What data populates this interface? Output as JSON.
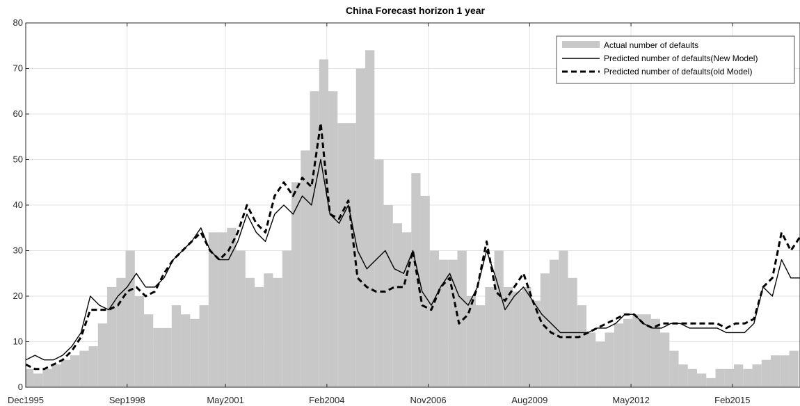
{
  "chart_data": {
    "type": "bar",
    "title": "China Forecast horizon 1 year",
    "xlabel": "",
    "ylabel": "",
    "x_range": [
      "1995-12",
      "2016-12"
    ],
    "ylim": [
      0,
      80
    ],
    "yticks": [
      0,
      10,
      20,
      30,
      40,
      50,
      60,
      70,
      80
    ],
    "xticks": [
      "Dec1995",
      "Sep1998",
      "May2001",
      "Feb2004",
      "Nov2006",
      "Aug2009",
      "May2012",
      "Feb2015"
    ],
    "grid": true,
    "legend_position": "top-right",
    "legend": [
      "Actual number of defaults",
      "Predicted number of defaults(New Model)",
      "Predicted number of defaults(old Model)"
    ],
    "colors": {
      "bars": "#c8c8c8",
      "new_model": "#000000",
      "old_model": "#000000",
      "grid": "#e3e3e3"
    },
    "series": [
      {
        "name": "Actual number of defaults",
        "type": "bar",
        "x": [
          "1996-01",
          "1996-04",
          "1996-07",
          "1996-10",
          "1997-01",
          "1997-04",
          "1997-07",
          "1997-10",
          "1998-01",
          "1998-04",
          "1998-07",
          "1998-10",
          "1999-01",
          "1999-04",
          "1999-07",
          "1999-10",
          "2000-01",
          "2000-04",
          "2000-07",
          "2000-10",
          "2001-01",
          "2001-04",
          "2001-07",
          "2001-10",
          "2002-01",
          "2002-04",
          "2002-07",
          "2002-10",
          "2003-01",
          "2003-04",
          "2003-07",
          "2003-10",
          "2004-01",
          "2004-04",
          "2004-07",
          "2004-10",
          "2005-01",
          "2005-04",
          "2005-07",
          "2005-10",
          "2006-01",
          "2006-04",
          "2006-07",
          "2006-10",
          "2007-01",
          "2007-04",
          "2007-07",
          "2007-10",
          "2008-01",
          "2008-04",
          "2008-07",
          "2008-10",
          "2009-01",
          "2009-04",
          "2009-07",
          "2009-10",
          "2010-01",
          "2010-04",
          "2010-07",
          "2010-10",
          "2011-01",
          "2011-04",
          "2011-07",
          "2011-10",
          "2012-01",
          "2012-04",
          "2012-07",
          "2012-10",
          "2013-01",
          "2013-04",
          "2013-07",
          "2013-10",
          "2014-01",
          "2014-04",
          "2014-07",
          "2014-10",
          "2015-01",
          "2015-04",
          "2015-07",
          "2015-10",
          "2016-01",
          "2016-04",
          "2016-07",
          "2016-10"
        ],
        "values": [
          4,
          3,
          4,
          5,
          6,
          7,
          8,
          9,
          14,
          22,
          24,
          30,
          20,
          16,
          13,
          13,
          18,
          16,
          15,
          18,
          34,
          34,
          35,
          30,
          24,
          22,
          25,
          24,
          30,
          45,
          52,
          65,
          72,
          65,
          58,
          58,
          70,
          74,
          50,
          40,
          36,
          34,
          47,
          42,
          30,
          28,
          28,
          30,
          20,
          18,
          22,
          30,
          22,
          21,
          22,
          19,
          25,
          28,
          30,
          24,
          18,
          12,
          10,
          12,
          14,
          15,
          16,
          16,
          15,
          12,
          8,
          5,
          4,
          3,
          2,
          4,
          4,
          5,
          4,
          5,
          6,
          7,
          7,
          8
        ]
      },
      {
        "name": "Predicted number of defaults(New Model)",
        "type": "line",
        "x": [
          "1995-12",
          "1996-03",
          "1996-06",
          "1996-09",
          "1996-12",
          "1997-03",
          "1997-06",
          "1997-09",
          "1997-12",
          "1998-03",
          "1998-06",
          "1998-09",
          "1998-12",
          "1999-03",
          "1999-06",
          "1999-09",
          "1999-12",
          "2000-03",
          "2000-06",
          "2000-09",
          "2000-12",
          "2001-03",
          "2001-06",
          "2001-09",
          "2001-12",
          "2002-03",
          "2002-06",
          "2002-09",
          "2002-12",
          "2003-03",
          "2003-06",
          "2003-09",
          "2003-12",
          "2004-03",
          "2004-06",
          "2004-09",
          "2004-12",
          "2005-03",
          "2005-06",
          "2005-09",
          "2005-12",
          "2006-03",
          "2006-06",
          "2006-09",
          "2006-12",
          "2007-03",
          "2007-06",
          "2007-09",
          "2007-12",
          "2008-03",
          "2008-06",
          "2008-09",
          "2008-12",
          "2009-03",
          "2009-06",
          "2009-09",
          "2009-12",
          "2010-03",
          "2010-06",
          "2010-09",
          "2010-12",
          "2011-03",
          "2011-06",
          "2011-09",
          "2011-12",
          "2012-03",
          "2012-06",
          "2012-09",
          "2012-12",
          "2013-03",
          "2013-06",
          "2013-09",
          "2013-12",
          "2014-03",
          "2014-06",
          "2014-09",
          "2014-12",
          "2015-03",
          "2015-06",
          "2015-09",
          "2015-12",
          "2016-03",
          "2016-06",
          "2016-09",
          "2016-12"
        ],
        "values": [
          6,
          7,
          6,
          6,
          7,
          9,
          12,
          20,
          18,
          17,
          20,
          22,
          25,
          22,
          22,
          24,
          28,
          30,
          32,
          35,
          30,
          28,
          28,
          32,
          38,
          34,
          32,
          38,
          40,
          38,
          42,
          40,
          50,
          38,
          36,
          40,
          30,
          26,
          28,
          30,
          26,
          25,
          30,
          21,
          18,
          22,
          25,
          20,
          18,
          22,
          30,
          24,
          17,
          20,
          22,
          19,
          16,
          14,
          12,
          12,
          12,
          12,
          13,
          13,
          14,
          16,
          16,
          14,
          13,
          13,
          14,
          14,
          13,
          13,
          13,
          13,
          12,
          12,
          12,
          14,
          22,
          20,
          28,
          24,
          24
        ]
      },
      {
        "name": "Predicted number of defaults(old Model)",
        "type": "line",
        "x": [
          "1995-12",
          "1996-03",
          "1996-06",
          "1996-09",
          "1996-12",
          "1997-03",
          "1997-06",
          "1997-09",
          "1997-12",
          "1998-03",
          "1998-06",
          "1998-09",
          "1998-12",
          "1999-03",
          "1999-06",
          "1999-09",
          "1999-12",
          "2000-03",
          "2000-06",
          "2000-09",
          "2000-12",
          "2001-03",
          "2001-06",
          "2001-09",
          "2001-12",
          "2002-03",
          "2002-06",
          "2002-09",
          "2002-12",
          "2003-03",
          "2003-06",
          "2003-09",
          "2003-12",
          "2004-03",
          "2004-06",
          "2004-09",
          "2004-12",
          "2005-03",
          "2005-06",
          "2005-09",
          "2005-12",
          "2006-03",
          "2006-06",
          "2006-09",
          "2006-12",
          "2007-03",
          "2007-06",
          "2007-09",
          "2007-12",
          "2008-03",
          "2008-06",
          "2008-09",
          "2008-12",
          "2009-03",
          "2009-06",
          "2009-09",
          "2009-12",
          "2010-03",
          "2010-06",
          "2010-09",
          "2010-12",
          "2011-03",
          "2011-06",
          "2011-09",
          "2011-12",
          "2012-03",
          "2012-06",
          "2012-09",
          "2012-12",
          "2013-03",
          "2013-06",
          "2013-09",
          "2013-12",
          "2014-03",
          "2014-06",
          "2014-09",
          "2014-12",
          "2015-03",
          "2015-06",
          "2015-09",
          "2015-12",
          "2016-03",
          "2016-06",
          "2016-09",
          "2016-12"
        ],
        "values": [
          5,
          4,
          4,
          5,
          6,
          8,
          11,
          17,
          17,
          17,
          18,
          21,
          22,
          20,
          21,
          25,
          28,
          30,
          32,
          34,
          30,
          28,
          30,
          34,
          40,
          36,
          34,
          42,
          45,
          42,
          46,
          44,
          58,
          38,
          37,
          41,
          24,
          22,
          21,
          21,
          22,
          22,
          30,
          18,
          17,
          22,
          24,
          14,
          16,
          22,
          32,
          21,
          19,
          22,
          25,
          19,
          14,
          12,
          11,
          11,
          11,
          12,
          13,
          14,
          15,
          16,
          16,
          14,
          13,
          14,
          14,
          14,
          14,
          14,
          14,
          14,
          13,
          14,
          14,
          15,
          22,
          24,
          34,
          30,
          33
        ]
      }
    ]
  }
}
